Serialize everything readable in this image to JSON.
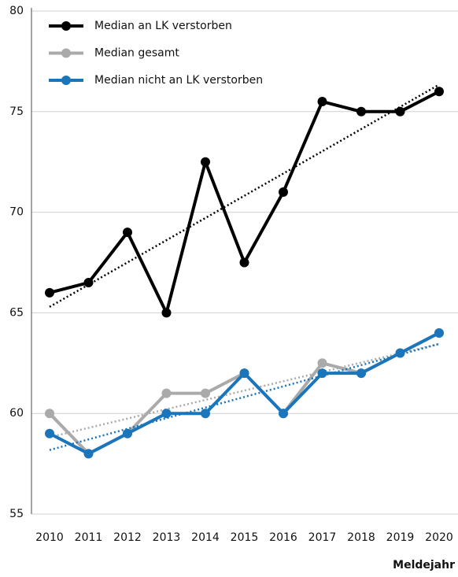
{
  "chart_data": {
    "type": "line",
    "x_label": "Meldejahr",
    "categories": [
      "2010",
      "2011",
      "2012",
      "2013",
      "2014",
      "2015",
      "2016",
      "2017",
      "2018",
      "2019",
      "2020"
    ],
    "series": [
      {
        "name": "Median an LK verstorben",
        "color": "#000000",
        "values": [
          66,
          66.5,
          69,
          65,
          72.5,
          67.5,
          71,
          75.5,
          75,
          75,
          76
        ]
      },
      {
        "name": "Median gesamt",
        "color": "#aaaaaa",
        "values": [
          60,
          58,
          59,
          61,
          61,
          62,
          60,
          62.5,
          62,
          63,
          64
        ]
      },
      {
        "name": "Median nicht an LK verstorben",
        "color": "#1a75bb",
        "values": [
          59,
          58,
          59,
          60,
          60,
          62,
          60,
          62,
          62,
          63,
          64
        ]
      }
    ],
    "ylim": [
      55,
      80
    ],
    "yticks": [
      55,
      60,
      65,
      70,
      75,
      80
    ],
    "grid": true,
    "trendline": true,
    "legend": "top-left"
  }
}
